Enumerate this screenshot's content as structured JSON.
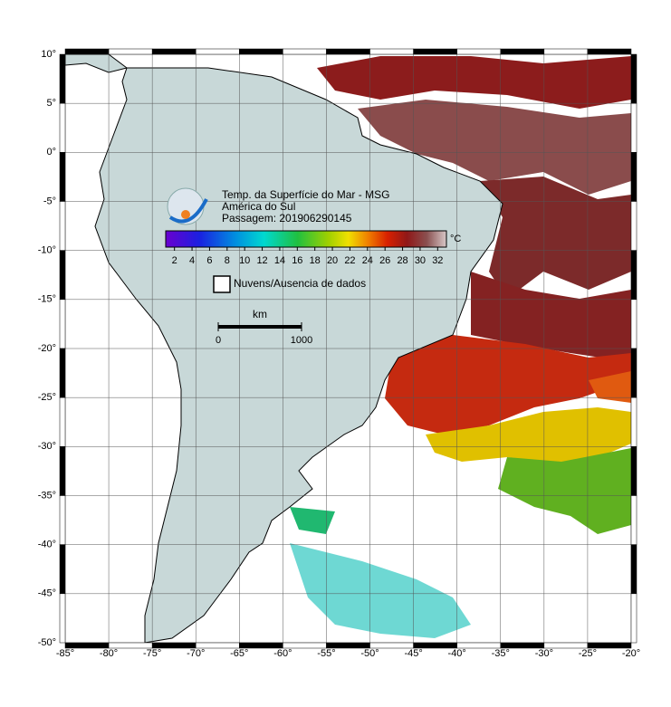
{
  "title_lines": [
    "Temp. da Superfície do Mar - MSG",
    "América do Sul",
    "Passagem: 201906290145"
  ],
  "colorbar": {
    "unit": "°C",
    "range": [
      1,
      33
    ],
    "ticks": [
      2,
      4,
      6,
      8,
      10,
      12,
      14,
      16,
      18,
      20,
      22,
      24,
      26,
      28,
      30,
      32
    ]
  },
  "legend": {
    "label": "Nuvens/Ausencia de dados"
  },
  "scale_bar": {
    "unit": "km",
    "ticks": [
      0,
      1000
    ]
  },
  "map": {
    "lonlim": [
      -85,
      -20
    ],
    "latlim": [
      -50,
      10
    ],
    "lon_ticks": [
      {
        "value": -85,
        "label": "-85°"
      },
      {
        "value": -80,
        "label": "-80°"
      },
      {
        "value": -75,
        "label": "-75°"
      },
      {
        "value": -70,
        "label": "-70°"
      },
      {
        "value": -65,
        "label": "-65°"
      },
      {
        "value": -60,
        "label": "-60°"
      },
      {
        "value": -55,
        "label": "-55°"
      },
      {
        "value": -50,
        "label": "-50°"
      },
      {
        "value": -45,
        "label": "-45°"
      },
      {
        "value": -40,
        "label": "-40°"
      },
      {
        "value": -35,
        "label": "-35°"
      },
      {
        "value": -30,
        "label": "-30°"
      },
      {
        "value": -25,
        "label": "-25°"
      },
      {
        "value": -20,
        "label": "-20°"
      }
    ],
    "lat_ticks": [
      {
        "value": 10,
        "label": "10°"
      },
      {
        "value": 5,
        "label": "5°"
      },
      {
        "value": 0,
        "label": "0°"
      },
      {
        "value": -5,
        "label": "-5°"
      },
      {
        "value": -10,
        "label": "-10°"
      },
      {
        "value": -15,
        "label": "-15°"
      },
      {
        "value": -20,
        "label": "-20°"
      },
      {
        "value": -25,
        "label": "-25°"
      },
      {
        "value": -30,
        "label": "-30°"
      },
      {
        "value": -35,
        "label": "-35°"
      },
      {
        "value": -40,
        "label": "-40°"
      },
      {
        "value": -45,
        "label": "-45°"
      },
      {
        "value": -50,
        "label": "-50°"
      }
    ]
  }
}
